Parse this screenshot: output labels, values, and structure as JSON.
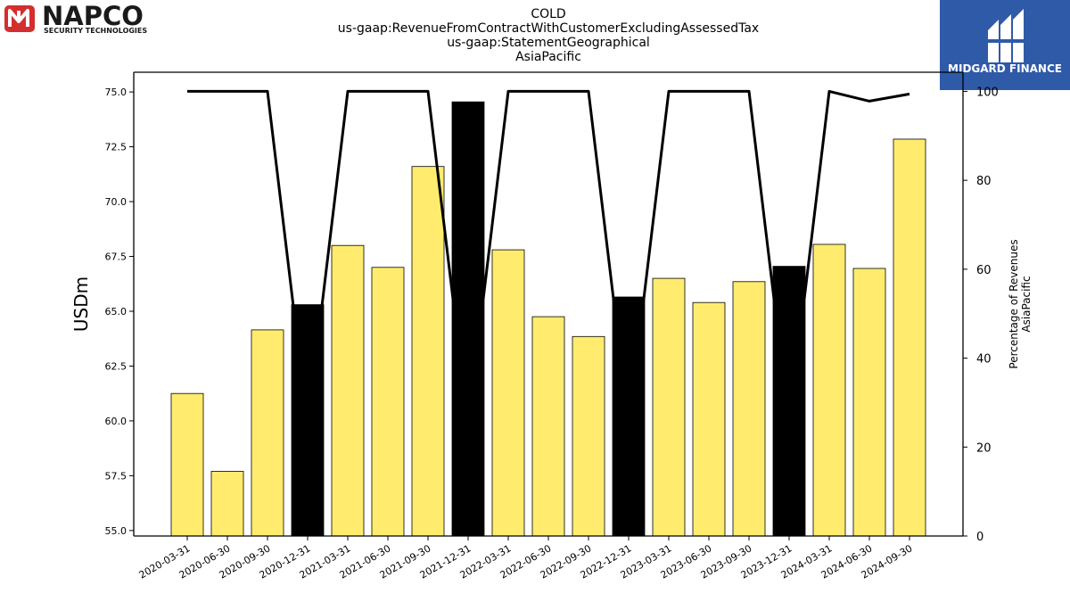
{
  "logos": {
    "left": {
      "name": "NAPCO",
      "tagline": "SECURITY TECHNOLOGIES",
      "mark_color": "#d32f2f"
    },
    "right": {
      "name": "MIDGARD FINANCE",
      "bg_color": "#2f5aa8"
    }
  },
  "chart_data": {
    "type": "bar",
    "title_lines": [
      "COLD",
      "us-gaap:RevenueFromContractWithCustomerExcludingAssessedTax",
      "us-gaap:StatementGeographical",
      "AsiaPacific"
    ],
    "ylabel": "USDm",
    "y2label_lines": [
      "Percentage of Revenues",
      "AsiaPacific"
    ],
    "ylim": [
      54.75,
      75.9
    ],
    "y2lim": [
      0,
      104.3
    ],
    "yticks": [
      "55.0",
      "57.5",
      "60.0",
      "62.5",
      "65.0",
      "67.5",
      "70.0",
      "72.5",
      "75.0"
    ],
    "y2ticks": [
      "0",
      "20",
      "40",
      "60",
      "80",
      "100"
    ],
    "categories": [
      "2020-03-31",
      "2020-06-30",
      "2020-09-30",
      "2020-12-31",
      "2021-03-31",
      "2021-06-30",
      "2021-09-30",
      "2021-12-31",
      "2022-03-31",
      "2022-06-30",
      "2022-09-30",
      "2022-12-31",
      "2023-03-31",
      "2023-06-30",
      "2023-09-30",
      "2023-12-31",
      "2024-03-31",
      "2024-06-30",
      "2024-09-30"
    ],
    "series": [
      {
        "type": "bar",
        "values": [
          61.25,
          57.7,
          64.15,
          65.3,
          68.0,
          67.0,
          71.6,
          74.55,
          67.8,
          64.75,
          63.85,
          65.65,
          66.5,
          65.4,
          66.35,
          67.05,
          68.05,
          66.95,
          72.85
        ],
        "highlight": [
          false,
          false,
          false,
          true,
          false,
          false,
          false,
          true,
          false,
          false,
          false,
          true,
          false,
          false,
          false,
          true,
          false,
          false,
          false
        ],
        "color": "#ffec6e",
        "highlight_color": "#000000"
      },
      {
        "type": "line",
        "axis": "right",
        "values": [
          100,
          100,
          100,
          25,
          100,
          100,
          100,
          25,
          100,
          100,
          100,
          25,
          100,
          100,
          100,
          25,
          100,
          97.8,
          99.4
        ],
        "color": "#000000"
      }
    ],
    "grid": false,
    "legend": "none"
  }
}
